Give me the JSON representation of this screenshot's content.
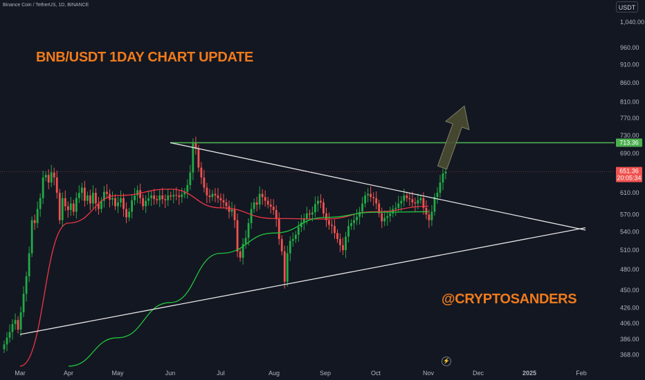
{
  "header": {
    "symbol": "Binance Coin / TetherUS, 1D, BINANCE",
    "currency": "USDT"
  },
  "annotations": {
    "title": "BNB/USDT 1DAY CHART UPDATE",
    "handle": "@CRYPTOSANDERS"
  },
  "price_labels": {
    "resistance": "713.36",
    "last_price": "651.36",
    "countdown": "20:05:34"
  },
  "colors": {
    "background": "#131722",
    "up_candle": "#26a69a",
    "up_candle_bright": "#22ab46",
    "down_candle": "#ef5350",
    "ma_fast": "#f23645",
    "ma_slow": "#22c53c",
    "resistance_line": "#4caf50",
    "trendline": "#e8e8e8",
    "annotation_text": "#f07b1b",
    "arrow_fill": "#4a4c32"
  },
  "chart_data": {
    "type": "candlestick",
    "title": "BNB/USDT 1DAY CHART UPDATE",
    "symbol": "Binance Coin / TetherUS, 1D, BINANCE",
    "x_ticks": [
      "Mar",
      "Apr",
      "May",
      "Jun",
      "Jul",
      "Aug",
      "Sep",
      "Oct",
      "Nov",
      "Dec",
      "2025",
      "Feb"
    ],
    "y_ticks": [
      368,
      386,
      406,
      426,
      450,
      480,
      510,
      540,
      570,
      610,
      650,
      690,
      730,
      770,
      810,
      860,
      910,
      960,
      1040
    ],
    "y_tick_labels": [
      "368.00",
      "386.00",
      "406.00",
      "426.00",
      "450.00",
      "480.00",
      "510.00",
      "540.00",
      "570.00",
      "610.00",
      "650.00",
      "690.00",
      "730.00",
      "770.00",
      "810.00",
      "860.00",
      "910.00",
      "960.00",
      "1,040.00"
    ],
    "scale": "log",
    "ylim": [
      355,
      1090
    ],
    "last_price": 651.36,
    "resistance_level": 713.36,
    "closes": [
      380,
      388,
      395,
      405,
      410,
      398,
      420,
      445,
      470,
      505,
      560,
      555,
      580,
      600,
      640,
      645,
      630,
      650,
      640,
      610,
      560,
      600,
      585,
      578,
      590,
      575,
      600,
      610,
      620,
      595,
      605,
      590,
      610,
      590,
      580,
      595,
      612,
      608,
      597,
      600,
      585,
      592,
      600,
      580,
      565,
      575,
      596,
      605,
      615,
      600,
      585,
      595,
      600,
      605,
      598,
      596,
      605,
      598,
      596,
      605,
      603,
      606,
      605,
      602,
      607,
      612,
      625,
      650,
      712,
      700,
      660,
      640,
      620,
      605,
      602,
      608,
      605,
      600,
      596,
      592,
      585,
      575,
      579,
      560,
      508,
      498,
      520,
      530,
      555,
      580,
      592,
      588,
      608,
      602,
      595,
      588,
      584,
      578,
      562,
      528,
      508,
      462,
      505,
      525,
      528,
      535,
      548,
      556,
      563,
      572,
      570,
      574,
      589,
      595,
      592,
      572,
      560,
      552,
      550,
      538,
      528,
      518,
      510,
      532,
      550,
      555,
      560,
      566,
      575,
      590,
      605,
      608,
      602,
      600,
      590,
      572,
      558,
      564,
      567,
      572,
      580,
      582,
      590,
      595,
      605,
      600,
      598,
      592,
      590,
      596,
      600,
      582,
      570,
      560,
      575,
      602,
      610,
      630,
      648,
      651.36
    ],
    "series": [
      {
        "name": "",
        "type": "ma",
        "values_at_ticks": {
          "Mar": 355,
          "Apr": 555,
          "May": 605,
          "Jun": 617,
          "Jul": 582,
          "Aug": 563,
          "Sep": 562,
          "Oct": 575,
          "Nov": 585
        }
      },
      {
        "name": "",
        "type": "ma",
        "values_at_ticks": {
          "Apr": 355,
          "May": 388,
          "Jun": 433,
          "Jul": 505,
          "Aug": 538,
          "Sep": 565,
          "Oct": 574,
          "Nov": 575
        }
      }
    ],
    "annotations": [
      {
        "kind": "horizontal_line",
        "value": 713.36,
        "from": "Jun",
        "to": "end"
      },
      {
        "kind": "trendline",
        "from": {
          "x": "Jun",
          "y": 713.36
        },
        "to": {
          "x": "Feb",
          "y": 543
        }
      },
      {
        "kind": "trendline",
        "from": {
          "x": "Mar",
          "y": 392
        },
        "to": {
          "x": "Feb",
          "y": 547
        }
      },
      {
        "kind": "arrow",
        "from": {
          "x": "Nov",
          "y": 660
        },
        "to": {
          "x": "Dec",
          "y": 800
        }
      }
    ]
  }
}
